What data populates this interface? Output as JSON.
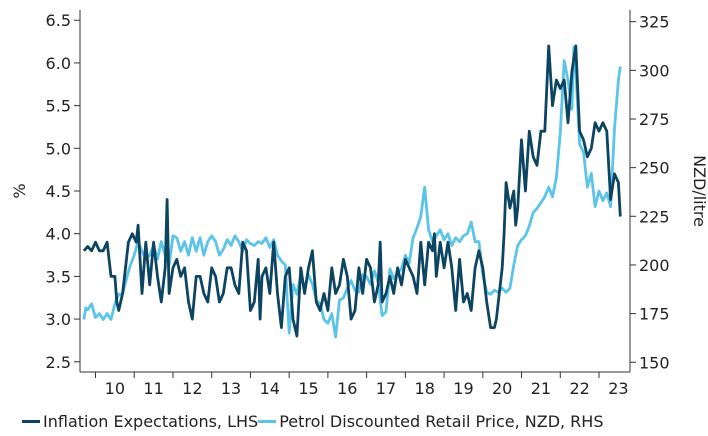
{
  "chart_data": {
    "type": "line",
    "x_tick_labels": [
      "10",
      "11",
      "12",
      "13",
      "14",
      "15",
      "16",
      "17",
      "18",
      "19",
      "20",
      "21",
      "22",
      "23"
    ],
    "xlim": [
      2009.6,
      2023.8
    ],
    "left_axis": {
      "label": "%",
      "ylim": [
        2.38,
        6.62
      ],
      "ticks": [
        "2.5",
        "3.0",
        "3.5",
        "4.0",
        "4.5",
        "5.0",
        "5.5",
        "6.0",
        "6.5"
      ]
    },
    "right_axis": {
      "label": "NZD/litre",
      "ylim": [
        145,
        331
      ],
      "ticks": [
        "150",
        "175",
        "200",
        "225",
        "250",
        "275",
        "300",
        "325"
      ]
    },
    "grid": false,
    "legend_position": "bottom",
    "series": [
      {
        "name": "Inflation Expectations, LHS",
        "axis": "left",
        "color": "#0d4462",
        "points": [
          [
            2009.7,
            3.8
          ],
          [
            2009.8,
            3.85
          ],
          [
            2009.9,
            3.8
          ],
          [
            2010.0,
            3.9
          ],
          [
            2010.1,
            3.8
          ],
          [
            2010.2,
            3.8
          ],
          [
            2010.3,
            3.9
          ],
          [
            2010.4,
            3.5
          ],
          [
            2010.5,
            3.5
          ],
          [
            2010.55,
            3.2
          ],
          [
            2010.6,
            3.1
          ],
          [
            2010.7,
            3.3
          ],
          [
            2010.85,
            3.9
          ],
          [
            2010.95,
            4.0
          ],
          [
            2011.05,
            3.9
          ],
          [
            2011.1,
            4.1
          ],
          [
            2011.2,
            3.3
          ],
          [
            2011.3,
            3.9
          ],
          [
            2011.4,
            3.4
          ],
          [
            2011.5,
            3.9
          ],
          [
            2011.6,
            3.5
          ],
          [
            2011.7,
            3.2
          ],
          [
            2011.8,
            3.6
          ],
          [
            2011.85,
            4.4
          ],
          [
            2011.9,
            3.3
          ],
          [
            2012.0,
            3.6
          ],
          [
            2012.1,
            3.7
          ],
          [
            2012.2,
            3.5
          ],
          [
            2012.3,
            3.6
          ],
          [
            2012.4,
            3.2
          ],
          [
            2012.5,
            3.0
          ],
          [
            2012.6,
            3.5
          ],
          [
            2012.7,
            3.5
          ],
          [
            2012.8,
            3.3
          ],
          [
            2012.9,
            3.2
          ],
          [
            2013.0,
            3.6
          ],
          [
            2013.1,
            3.5
          ],
          [
            2013.2,
            3.2
          ],
          [
            2013.3,
            3.3
          ],
          [
            2013.4,
            3.6
          ],
          [
            2013.5,
            3.6
          ],
          [
            2013.6,
            3.4
          ],
          [
            2013.7,
            3.3
          ],
          [
            2013.8,
            3.9
          ],
          [
            2013.9,
            3.8
          ],
          [
            2014.0,
            3.1
          ],
          [
            2014.1,
            3.2
          ],
          [
            2014.2,
            3.7
          ],
          [
            2014.25,
            3.0
          ],
          [
            2014.3,
            3.5
          ],
          [
            2014.4,
            3.6
          ],
          [
            2014.5,
            3.3
          ],
          [
            2014.6,
            3.9
          ],
          [
            2014.7,
            3.3
          ],
          [
            2014.8,
            2.9
          ],
          [
            2014.9,
            3.5
          ],
          [
            2015.0,
            3.6
          ],
          [
            2015.1,
            3.0
          ],
          [
            2015.2,
            2.8
          ],
          [
            2015.3,
            3.6
          ],
          [
            2015.4,
            3.3
          ],
          [
            2015.5,
            3.6
          ],
          [
            2015.6,
            3.8
          ],
          [
            2015.7,
            3.2
          ],
          [
            2015.8,
            3.1
          ],
          [
            2015.9,
            3.3
          ],
          [
            2016.0,
            3.1
          ],
          [
            2016.1,
            3.6
          ],
          [
            2016.2,
            3.3
          ],
          [
            2016.3,
            3.4
          ],
          [
            2016.4,
            3.7
          ],
          [
            2016.5,
            3.5
          ],
          [
            2016.6,
            3.0
          ],
          [
            2016.7,
            3.1
          ],
          [
            2016.8,
            3.6
          ],
          [
            2016.9,
            3.3
          ],
          [
            2017.0,
            3.7
          ],
          [
            2017.1,
            3.6
          ],
          [
            2017.2,
            3.2
          ],
          [
            2017.3,
            3.4
          ],
          [
            2017.35,
            3.9
          ],
          [
            2017.4,
            3.2
          ],
          [
            2017.5,
            3.3
          ],
          [
            2017.6,
            3.5
          ],
          [
            2017.7,
            3.3
          ],
          [
            2017.8,
            3.6
          ],
          [
            2017.9,
            3.4
          ],
          [
            2018.0,
            3.7
          ],
          [
            2018.1,
            3.6
          ],
          [
            2018.2,
            3.5
          ],
          [
            2018.3,
            3.3
          ],
          [
            2018.4,
            3.9
          ],
          [
            2018.5,
            3.4
          ],
          [
            2018.6,
            3.9
          ],
          [
            2018.7,
            3.8
          ],
          [
            2018.75,
            4.0
          ],
          [
            2018.8,
            3.5
          ],
          [
            2018.9,
            3.9
          ],
          [
            2019.0,
            3.6
          ],
          [
            2019.1,
            3.9
          ],
          [
            2019.2,
            3.6
          ],
          [
            2019.3,
            3.1
          ],
          [
            2019.4,
            3.7
          ],
          [
            2019.5,
            3.2
          ],
          [
            2019.6,
            3.3
          ],
          [
            2019.7,
            3.1
          ],
          [
            2019.8,
            3.6
          ],
          [
            2019.9,
            3.8
          ],
          [
            2020.0,
            3.6
          ],
          [
            2020.1,
            3.2
          ],
          [
            2020.2,
            2.9
          ],
          [
            2020.3,
            2.9
          ],
          [
            2020.35,
            3.0
          ],
          [
            2020.4,
            3.2
          ],
          [
            2020.5,
            3.6
          ],
          [
            2020.55,
            4.0
          ],
          [
            2020.6,
            4.6
          ],
          [
            2020.7,
            4.3
          ],
          [
            2020.8,
            4.5
          ],
          [
            2020.85,
            4.1
          ],
          [
            2020.9,
            4.3
          ],
          [
            2021.0,
            5.1
          ],
          [
            2021.1,
            4.5
          ],
          [
            2021.2,
            5.2
          ],
          [
            2021.3,
            4.9
          ],
          [
            2021.4,
            4.8
          ],
          [
            2021.5,
            5.2
          ],
          [
            2021.6,
            5.2
          ],
          [
            2021.7,
            6.2
          ],
          [
            2021.8,
            5.5
          ],
          [
            2021.9,
            5.8
          ],
          [
            2022.0,
            5.7
          ],
          [
            2022.1,
            5.8
          ],
          [
            2022.2,
            5.3
          ],
          [
            2022.3,
            5.9
          ],
          [
            2022.4,
            6.2
          ],
          [
            2022.5,
            5.2
          ],
          [
            2022.6,
            5.1
          ],
          [
            2022.7,
            4.9
          ],
          [
            2022.8,
            5.0
          ],
          [
            2022.9,
            5.3
          ],
          [
            2023.0,
            5.2
          ],
          [
            2023.1,
            5.3
          ],
          [
            2023.2,
            5.2
          ],
          [
            2023.3,
            4.4
          ],
          [
            2023.4,
            4.7
          ],
          [
            2023.5,
            4.6
          ],
          [
            2023.55,
            4.2
          ]
        ]
      },
      {
        "name": "Petrol Discounted Retail Price, NZD, RHS",
        "axis": "right",
        "color": "#5bc4e8",
        "points": [
          [
            2009.7,
            172
          ],
          [
            2009.75,
            178
          ],
          [
            2009.8,
            177
          ],
          [
            2009.9,
            180
          ],
          [
            2010.0,
            173
          ],
          [
            2010.1,
            175
          ],
          [
            2010.2,
            172
          ],
          [
            2010.3,
            175
          ],
          [
            2010.4,
            172
          ],
          [
            2010.5,
            180
          ],
          [
            2010.6,
            185
          ],
          [
            2010.7,
            185
          ],
          [
            2010.8,
            193
          ],
          [
            2010.9,
            200
          ],
          [
            2011.0,
            205
          ],
          [
            2011.1,
            212
          ],
          [
            2011.2,
            207
          ],
          [
            2011.3,
            203
          ],
          [
            2011.4,
            205
          ],
          [
            2011.5,
            210
          ],
          [
            2011.6,
            203
          ],
          [
            2011.7,
            212
          ],
          [
            2011.8,
            205
          ],
          [
            2011.9,
            200
          ],
          [
            2012.0,
            215
          ],
          [
            2012.1,
            214
          ],
          [
            2012.2,
            207
          ],
          [
            2012.3,
            212
          ],
          [
            2012.4,
            205
          ],
          [
            2012.5,
            214
          ],
          [
            2012.6,
            207
          ],
          [
            2012.7,
            214
          ],
          [
            2012.8,
            205
          ],
          [
            2012.9,
            212
          ],
          [
            2013.0,
            215
          ],
          [
            2013.1,
            212
          ],
          [
            2013.2,
            205
          ],
          [
            2013.3,
            208
          ],
          [
            2013.4,
            213
          ],
          [
            2013.5,
            210
          ],
          [
            2013.6,
            215
          ],
          [
            2013.7,
            212
          ],
          [
            2013.8,
            207
          ],
          [
            2013.9,
            213
          ],
          [
            2014.0,
            211
          ],
          [
            2014.1,
            210
          ],
          [
            2014.2,
            212
          ],
          [
            2014.3,
            211
          ],
          [
            2014.4,
            214
          ],
          [
            2014.5,
            209
          ],
          [
            2014.6,
            213
          ],
          [
            2014.7,
            205
          ],
          [
            2014.8,
            202
          ],
          [
            2014.9,
            200
          ],
          [
            2015.0,
            165
          ],
          [
            2015.1,
            190
          ],
          [
            2015.2,
            185
          ],
          [
            2015.3,
            195
          ],
          [
            2015.4,
            188
          ],
          [
            2015.5,
            195
          ],
          [
            2015.6,
            190
          ],
          [
            2015.7,
            182
          ],
          [
            2015.8,
            180
          ],
          [
            2015.9,
            172
          ],
          [
            2016.0,
            170
          ],
          [
            2016.1,
            175
          ],
          [
            2016.2,
            163
          ],
          [
            2016.3,
            182
          ],
          [
            2016.4,
            183
          ],
          [
            2016.5,
            188
          ],
          [
            2016.6,
            192
          ],
          [
            2016.7,
            187
          ],
          [
            2016.8,
            186
          ],
          [
            2016.9,
            195
          ],
          [
            2017.0,
            194
          ],
          [
            2017.1,
            190
          ],
          [
            2017.2,
            197
          ],
          [
            2017.3,
            191
          ],
          [
            2017.4,
            174
          ],
          [
            2017.5,
            176
          ],
          [
            2017.6,
            198
          ],
          [
            2017.7,
            193
          ],
          [
            2017.8,
            196
          ],
          [
            2017.9,
            198
          ],
          [
            2018.0,
            205
          ],
          [
            2018.1,
            201
          ],
          [
            2018.2,
            214
          ],
          [
            2018.3,
            219
          ],
          [
            2018.4,
            225
          ],
          [
            2018.5,
            240
          ],
          [
            2018.6,
            218
          ],
          [
            2018.7,
            212
          ],
          [
            2018.8,
            215
          ],
          [
            2018.9,
            218
          ],
          [
            2019.0,
            213
          ],
          [
            2019.1,
            216
          ],
          [
            2019.2,
            210
          ],
          [
            2019.3,
            214
          ],
          [
            2019.4,
            212
          ],
          [
            2019.5,
            215
          ],
          [
            2019.6,
            216
          ],
          [
            2019.7,
            222
          ],
          [
            2019.8,
            212
          ],
          [
            2019.9,
            212
          ],
          [
            2020.0,
            195
          ],
          [
            2020.1,
            186
          ],
          [
            2020.2,
            185
          ],
          [
            2020.3,
            187
          ],
          [
            2020.4,
            186
          ],
          [
            2020.5,
            188
          ],
          [
            2020.6,
            186
          ],
          [
            2020.7,
            188
          ],
          [
            2020.8,
            200
          ],
          [
            2020.9,
            210
          ],
          [
            2021.0,
            213
          ],
          [
            2021.1,
            215
          ],
          [
            2021.2,
            220
          ],
          [
            2021.3,
            227
          ],
          [
            2021.4,
            229
          ],
          [
            2021.5,
            232
          ],
          [
            2021.6,
            235
          ],
          [
            2021.7,
            240
          ],
          [
            2021.8,
            235
          ],
          [
            2021.9,
            245
          ],
          [
            2022.0,
            268
          ],
          [
            2022.1,
            305
          ],
          [
            2022.2,
            295
          ],
          [
            2022.3,
            280
          ],
          [
            2022.35,
            312
          ],
          [
            2022.4,
            300
          ],
          [
            2022.5,
            262
          ],
          [
            2022.6,
            258
          ],
          [
            2022.7,
            240
          ],
          [
            2022.8,
            247
          ],
          [
            2022.9,
            230
          ],
          [
            2023.0,
            238
          ],
          [
            2023.1,
            233
          ],
          [
            2023.2,
            237
          ],
          [
            2023.3,
            230
          ],
          [
            2023.4,
            270
          ],
          [
            2023.5,
            295
          ],
          [
            2023.55,
            302
          ]
        ]
      }
    ]
  }
}
